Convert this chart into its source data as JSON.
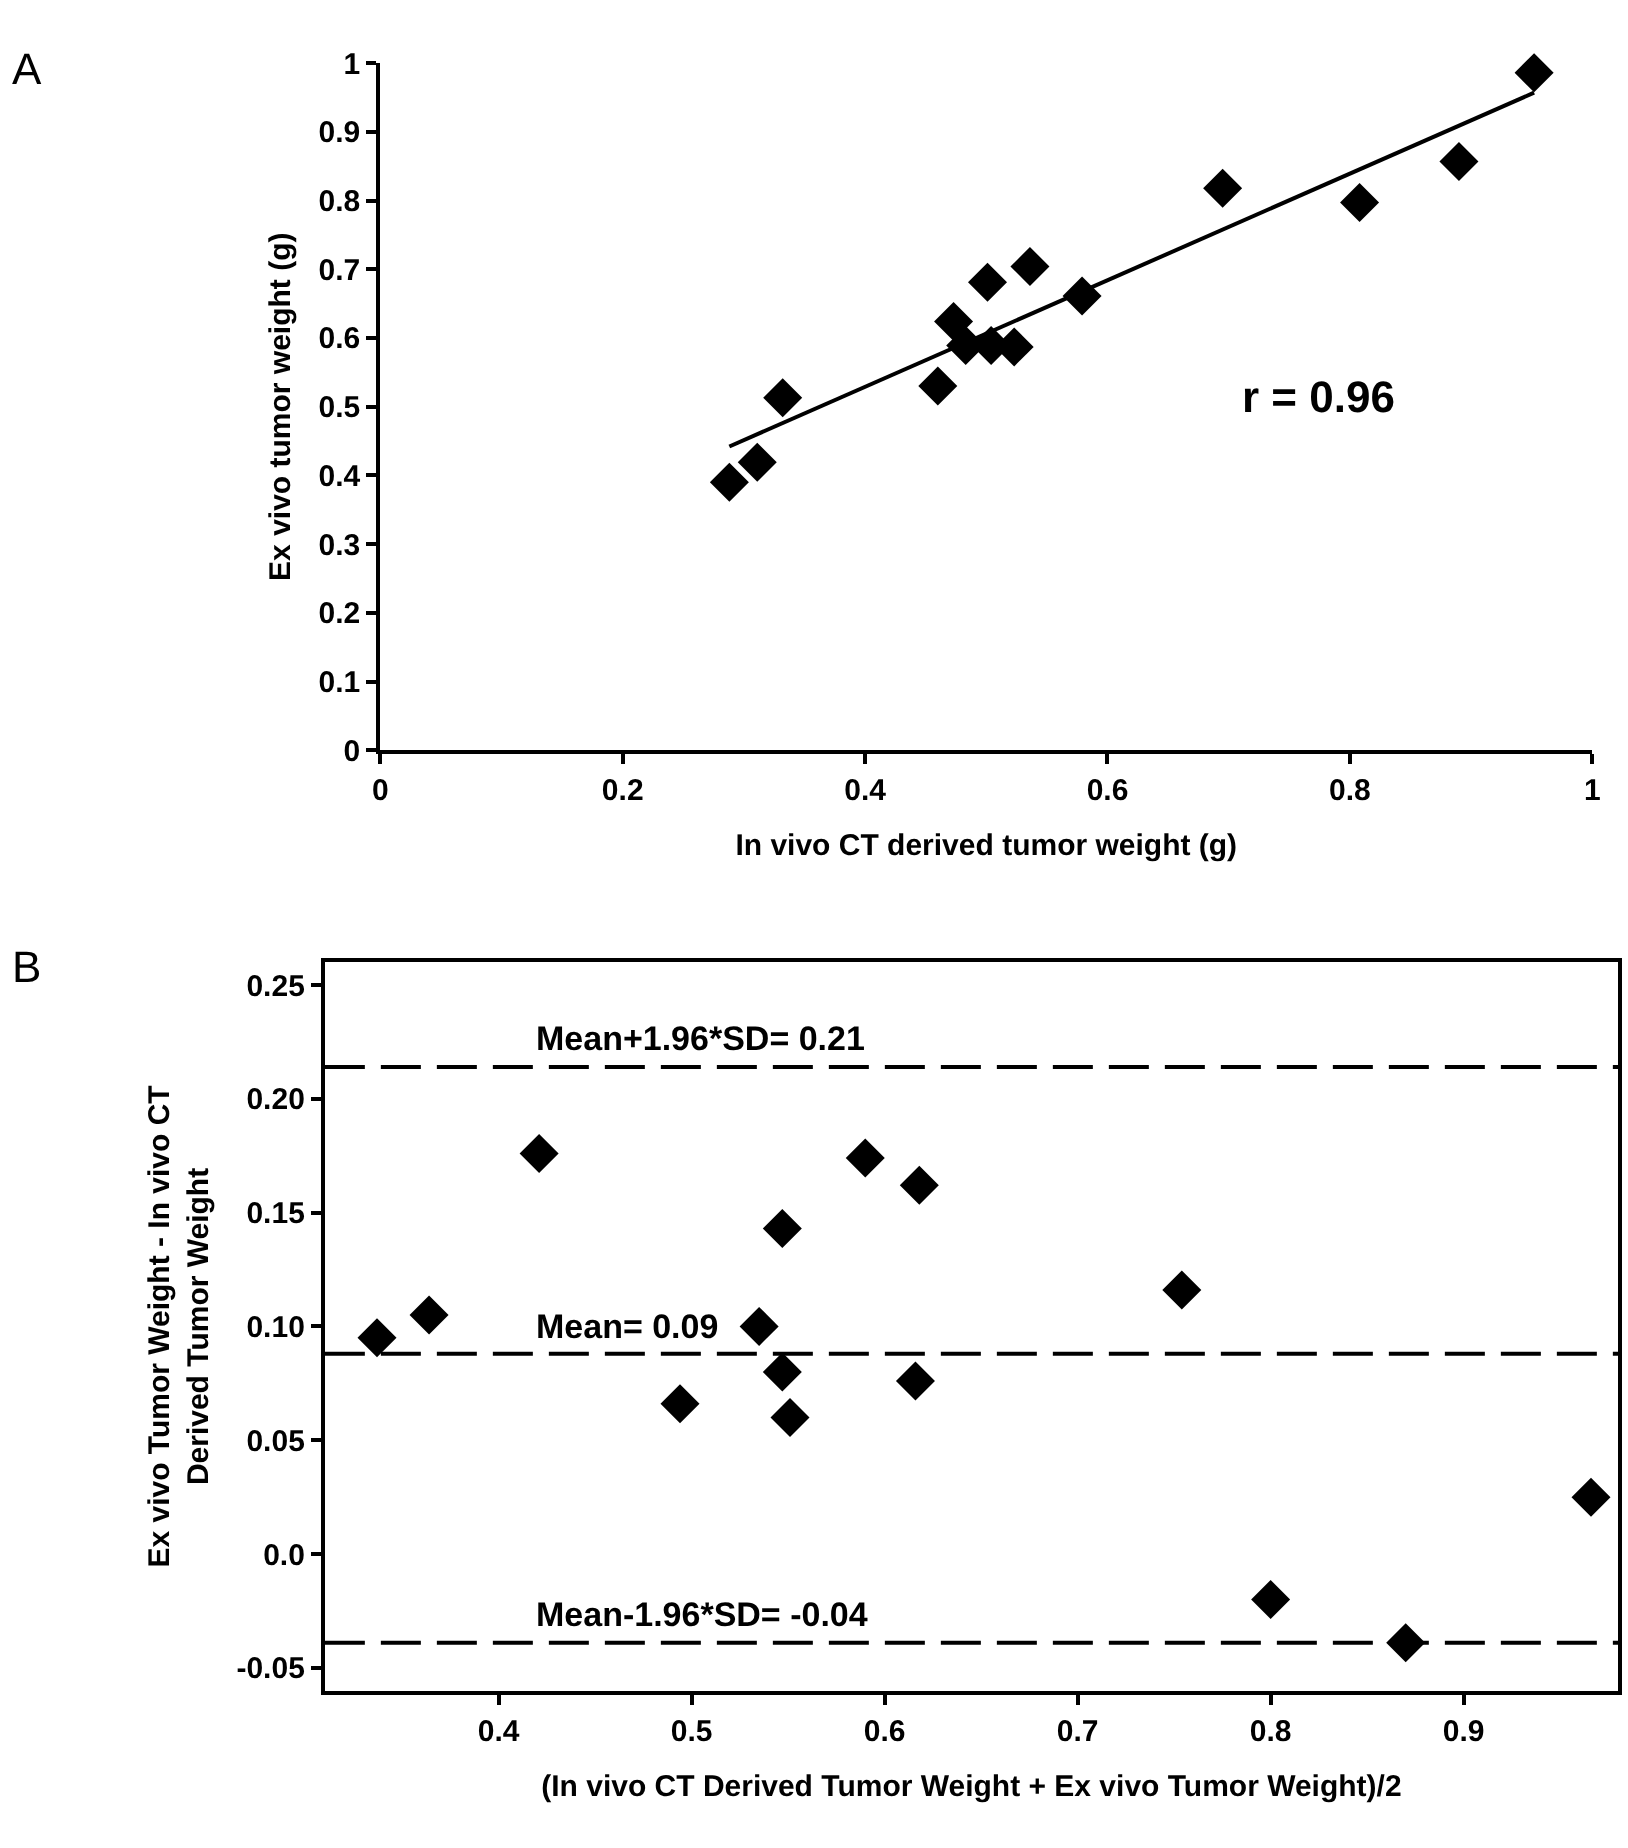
{
  "chart_data": [
    {
      "type": "scatter",
      "xlabel": "In vivo CT derived tumor weight (g)",
      "ylabel": "Ex vivo tumor weight (g)",
      "annotations": [
        "A",
        "r = 0.96"
      ],
      "xlim": [
        0,
        1
      ],
      "ylim": [
        0,
        1
      ],
      "xticks": [
        0,
        0.2,
        0.4,
        0.6,
        0.8,
        1
      ],
      "yticks": [
        0,
        0.1,
        0.2,
        0.3,
        0.4,
        0.5,
        0.6,
        0.7,
        0.8,
        0.9,
        1
      ],
      "marker": "diamond",
      "series": [
        {
          "color": "#000000",
          "x": [
            0.288,
            0.311,
            0.332,
            0.46,
            0.473,
            0.483,
            0.501,
            0.504,
            0.523,
            0.536,
            0.579,
            0.695,
            0.808,
            0.89,
            0.952
          ],
          "values": [
            0.39,
            0.419,
            0.513,
            0.53,
            0.624,
            0.589,
            0.681,
            0.589,
            0.587,
            0.704,
            0.661,
            0.818,
            0.797,
            0.857,
            0.986
          ]
        },
        {
          "type": "line",
          "marker": "none",
          "color": "#000000",
          "x": [
            0.288,
            0.952
          ],
          "values": [
            0.442,
            0.957
          ]
        }
      ]
    },
    {
      "type": "scatter",
      "xlabel": "(In vivo CT Derived Tumor Weight + Ex vivo Tumor Weight)/2",
      "ylabel": "Ex vivo Tumor Weight - In vivo CT\nDerived Tumor Weight",
      "annotations": [
        "B"
      ],
      "xlim": [
        0.31,
        0.98
      ],
      "ylim": [
        -0.06,
        0.26
      ],
      "xticks": [
        0.4,
        0.5,
        0.6,
        0.7,
        0.8,
        0.9
      ],
      "yticks": [
        {
          "value": -0.05,
          "label": "-0.05"
        },
        {
          "value": 0,
          "label": "0.0"
        },
        {
          "value": 0.05,
          "label": "0.05"
        },
        {
          "value": 0.1,
          "label": "0.10"
        },
        {
          "value": 0.15,
          "label": "0.15"
        },
        {
          "value": 0.2,
          "label": "0.20"
        },
        {
          "value": 0.25,
          "label": "0.25"
        }
      ],
      "marker": "diamond",
      "series": [
        {
          "color": "#000000",
          "x": [
            0.337,
            0.364,
            0.421,
            0.494,
            0.535,
            0.547,
            0.547,
            0.551,
            0.59,
            0.618,
            0.616,
            0.754,
            0.8,
            0.87,
            0.966
          ],
          "values": [
            0.095,
            0.105,
            0.176,
            0.066,
            0.1,
            0.143,
            0.08,
            0.06,
            0.174,
            0.162,
            0.076,
            0.116,
            -0.02,
            -0.039,
            0.025
          ]
        }
      ],
      "ref_lines": [
        {
          "axis": "y",
          "value": 0.214,
          "label": "Mean+1.96*SD= 0.21",
          "color": "#000000",
          "line_style": "dashed"
        },
        {
          "axis": "y",
          "value": 0.088,
          "label": "Mean= 0.09",
          "color": "#000000",
          "line_style": "dashed"
        },
        {
          "axis": "y",
          "value": -0.039,
          "label": "Mean-1.96*SD= -0.04",
          "color": "#000000",
          "line_style": "dashed"
        }
      ]
    }
  ]
}
